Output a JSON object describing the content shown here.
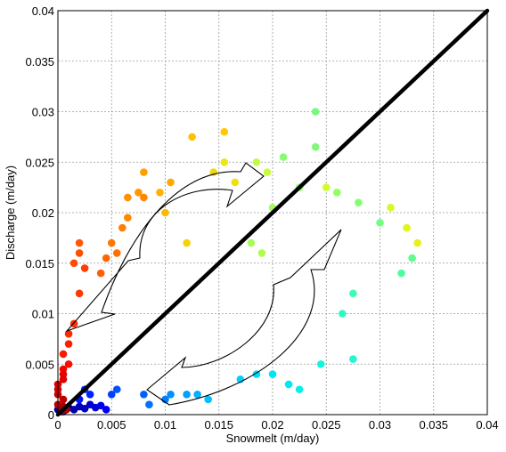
{
  "chart_data": {
    "type": "scatter",
    "title": "",
    "xlabel": "Snowmelt (m/day)",
    "ylabel": "Discharge (m/day)",
    "xlim": [
      0,
      0.04
    ],
    "ylim": [
      0,
      0.04
    ],
    "xticks": [
      "0",
      "0.005",
      "0.01",
      "0.015",
      "0.02",
      "0.025",
      "0.03",
      "0.035",
      "0.04"
    ],
    "yticks": [
      "0",
      "0.005",
      "0.01",
      "0.015",
      "0.02",
      "0.025",
      "0.03",
      "0.035",
      "0.04"
    ],
    "grid": true,
    "colormap": "jet (color encodes time order)",
    "reference_line": {
      "x": [
        0,
        0.04
      ],
      "y": [
        0,
        0.04
      ],
      "color": "#000000"
    },
    "annotations": [
      "clockwise hysteresis arrows"
    ],
    "points": [
      {
        "x": 0.0,
        "y": 0.0005,
        "c": "#00008f"
      },
      {
        "x": 0.0005,
        "y": 0.0003,
        "c": "#000096"
      },
      {
        "x": 0.001,
        "y": 0.0007,
        "c": "#00009b"
      },
      {
        "x": 0.0015,
        "y": 0.0005,
        "c": "#0000a8"
      },
      {
        "x": 0.002,
        "y": 0.0008,
        "c": "#0000b4"
      },
      {
        "x": 0.0025,
        "y": 0.0006,
        "c": "#0000c0"
      },
      {
        "x": 0.003,
        "y": 0.001,
        "c": "#0000cc"
      },
      {
        "x": 0.0035,
        "y": 0.0007,
        "c": "#0000d8"
      },
      {
        "x": 0.004,
        "y": 0.0009,
        "c": "#0000e4"
      },
      {
        "x": 0.0045,
        "y": 0.0005,
        "c": "#0000f0"
      },
      {
        "x": 0.002,
        "y": 0.0015,
        "c": "#0010ff"
      },
      {
        "x": 0.003,
        "y": 0.002,
        "c": "#0020ff"
      },
      {
        "x": 0.0025,
        "y": 0.0025,
        "c": "#0030ff"
      },
      {
        "x": 0.005,
        "y": 0.002,
        "c": "#0040ff"
      },
      {
        "x": 0.0055,
        "y": 0.0025,
        "c": "#0050ff"
      },
      {
        "x": 0.008,
        "y": 0.002,
        "c": "#0060ff"
      },
      {
        "x": 0.0085,
        "y": 0.001,
        "c": "#0070ff"
      },
      {
        "x": 0.01,
        "y": 0.0015,
        "c": "#0080ff"
      },
      {
        "x": 0.0105,
        "y": 0.002,
        "c": "#0090ff"
      },
      {
        "x": 0.012,
        "y": 0.002,
        "c": "#00a0ff"
      },
      {
        "x": 0.013,
        "y": 0.002,
        "c": "#00b0ff"
      },
      {
        "x": 0.014,
        "y": 0.0015,
        "c": "#00c0ff"
      },
      {
        "x": 0.017,
        "y": 0.0035,
        "c": "#00d0ff"
      },
      {
        "x": 0.0185,
        "y": 0.004,
        "c": "#00dcff"
      },
      {
        "x": 0.02,
        "y": 0.004,
        "c": "#00e4f8"
      },
      {
        "x": 0.0215,
        "y": 0.003,
        "c": "#00e8f0"
      },
      {
        "x": 0.0225,
        "y": 0.0025,
        "c": "#06f0e8"
      },
      {
        "x": 0.0245,
        "y": 0.005,
        "c": "#10f4e0"
      },
      {
        "x": 0.0275,
        "y": 0.0055,
        "c": "#20f8d0"
      },
      {
        "x": 0.0265,
        "y": 0.01,
        "c": "#30f8c0"
      },
      {
        "x": 0.0275,
        "y": 0.012,
        "c": "#40fcb0"
      },
      {
        "x": 0.032,
        "y": 0.014,
        "c": "#50fca0"
      },
      {
        "x": 0.033,
        "y": 0.0155,
        "c": "#60fc90"
      },
      {
        "x": 0.03,
        "y": 0.019,
        "c": "#70ff80"
      },
      {
        "x": 0.028,
        "y": 0.021,
        "c": "#80ff70"
      },
      {
        "x": 0.026,
        "y": 0.022,
        "c": "#90ff60"
      },
      {
        "x": 0.024,
        "y": 0.03,
        "c": "#78f880"
      },
      {
        "x": 0.024,
        "y": 0.0265,
        "c": "#80f878"
      },
      {
        "x": 0.021,
        "y": 0.0255,
        "c": "#88fc70"
      },
      {
        "x": 0.0225,
        "y": 0.0225,
        "c": "#90fc68"
      },
      {
        "x": 0.02,
        "y": 0.0205,
        "c": "#a0fc60"
      },
      {
        "x": 0.018,
        "y": 0.017,
        "c": "#a8fc58"
      },
      {
        "x": 0.019,
        "y": 0.016,
        "c": "#b0fc50"
      },
      {
        "x": 0.0185,
        "y": 0.025,
        "c": "#c0fc40"
      },
      {
        "x": 0.0195,
        "y": 0.024,
        "c": "#c8fc38"
      },
      {
        "x": 0.025,
        "y": 0.0225,
        "c": "#d0fc30"
      },
      {
        "x": 0.031,
        "y": 0.0205,
        "c": "#d8f828"
      },
      {
        "x": 0.0325,
        "y": 0.0185,
        "c": "#e0f420"
      },
      {
        "x": 0.0335,
        "y": 0.017,
        "c": "#e8f018"
      },
      {
        "x": 0.0155,
        "y": 0.025,
        "c": "#e8e818"
      },
      {
        "x": 0.0165,
        "y": 0.023,
        "c": "#f0e010"
      },
      {
        "x": 0.0145,
        "y": 0.024,
        "c": "#f0d810"
      },
      {
        "x": 0.012,
        "y": 0.017,
        "c": "#f8d008"
      },
      {
        "x": 0.0155,
        "y": 0.028,
        "c": "#ffc800"
      },
      {
        "x": 0.0125,
        "y": 0.0275,
        "c": "#ffc000"
      },
      {
        "x": 0.01,
        "y": 0.02,
        "c": "#ffb800"
      },
      {
        "x": 0.0095,
        "y": 0.022,
        "c": "#ffb000"
      },
      {
        "x": 0.0105,
        "y": 0.023,
        "c": "#ffa800"
      },
      {
        "x": 0.008,
        "y": 0.024,
        "c": "#ffa000"
      },
      {
        "x": 0.0075,
        "y": 0.022,
        "c": "#ff9800"
      },
      {
        "x": 0.0065,
        "y": 0.0215,
        "c": "#ff9000"
      },
      {
        "x": 0.0065,
        "y": 0.0195,
        "c": "#ff8800"
      },
      {
        "x": 0.008,
        "y": 0.0215,
        "c": "#ff8400"
      },
      {
        "x": 0.006,
        "y": 0.0185,
        "c": "#ff8000"
      },
      {
        "x": 0.005,
        "y": 0.017,
        "c": "#ff7800"
      },
      {
        "x": 0.0055,
        "y": 0.016,
        "c": "#ff7000"
      },
      {
        "x": 0.0045,
        "y": 0.0155,
        "c": "#ff6800"
      },
      {
        "x": 0.004,
        "y": 0.014,
        "c": "#ff6000"
      },
      {
        "x": 0.002,
        "y": 0.017,
        "c": "#ff5800"
      },
      {
        "x": 0.002,
        "y": 0.016,
        "c": "#ff5000"
      },
      {
        "x": 0.0015,
        "y": 0.015,
        "c": "#ff4800"
      },
      {
        "x": 0.0025,
        "y": 0.0145,
        "c": "#ff4000"
      },
      {
        "x": 0.002,
        "y": 0.012,
        "c": "#ff3800"
      },
      {
        "x": 0.0015,
        "y": 0.009,
        "c": "#ff3000"
      },
      {
        "x": 0.001,
        "y": 0.008,
        "c": "#ff2800"
      },
      {
        "x": 0.001,
        "y": 0.007,
        "c": "#ff2000"
      },
      {
        "x": 0.0005,
        "y": 0.006,
        "c": "#ff1800"
      },
      {
        "x": 0.001,
        "y": 0.005,
        "c": "#f81000"
      },
      {
        "x": 0.0005,
        "y": 0.0045,
        "c": "#f00800"
      },
      {
        "x": 0.0005,
        "y": 0.004,
        "c": "#e80000"
      },
      {
        "x": 0.0005,
        "y": 0.0035,
        "c": "#e00000"
      },
      {
        "x": 0.0,
        "y": 0.003,
        "c": "#d80000"
      },
      {
        "x": 0.0,
        "y": 0.0025,
        "c": "#d00000"
      },
      {
        "x": 0.0,
        "y": 0.002,
        "c": "#c80000"
      },
      {
        "x": 0.0005,
        "y": 0.0015,
        "c": "#c00000"
      },
      {
        "x": 0.0,
        "y": 0.001,
        "c": "#b80000"
      },
      {
        "x": 0.0005,
        "y": 0.0008,
        "c": "#b00000"
      },
      {
        "x": 0.0008,
        "y": 0.0005,
        "c": "#a80000"
      },
      {
        "x": 0.0003,
        "y": 0.0003,
        "c": "#a00000"
      }
    ]
  }
}
